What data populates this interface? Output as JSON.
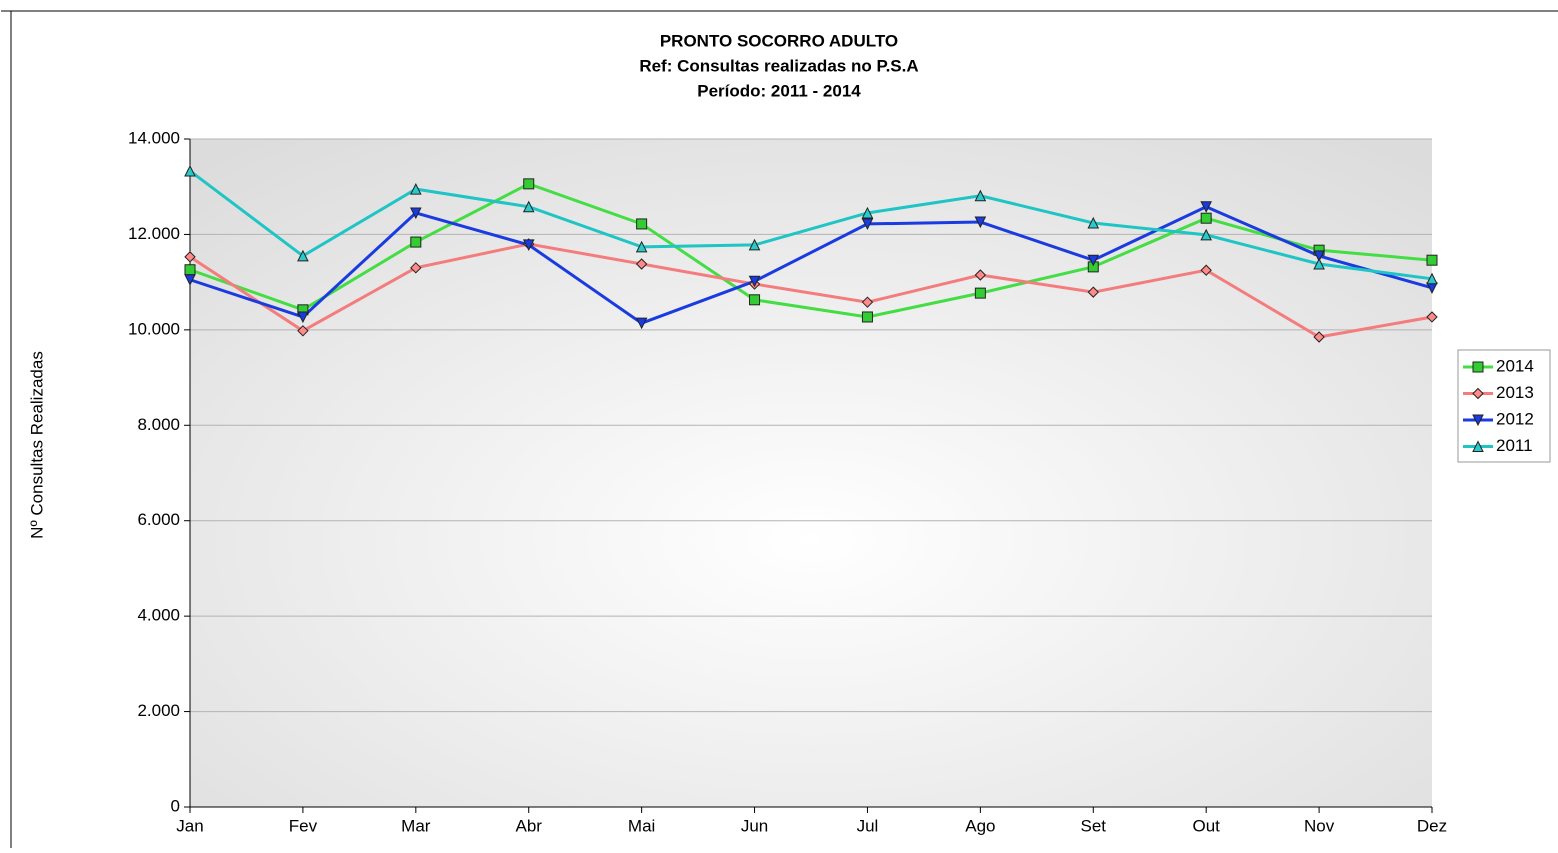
{
  "chart_data": {
    "type": "line",
    "title": "PRONTO SOCORRO ADULTO",
    "subtitle": [
      "Ref: Consultas realizadas no P.S.A",
      "Período: 2011 - 2014"
    ],
    "y_label": "Nº Consultas Realizadas",
    "categories": [
      "Jan",
      "Fev",
      "Mar",
      "Abr",
      "Mai",
      "Jun",
      "Jul",
      "Ago",
      "Set",
      "Out",
      "Nov",
      "Dez"
    ],
    "series": [
      {
        "name": "2014",
        "color": "#44dd44",
        "marker": "square",
        "marker_color": "#33cc33",
        "values": [
          11260,
          10420,
          11840,
          13060,
          12220,
          10630,
          10270,
          10770,
          11320,
          12340,
          11670,
          11460
        ]
      },
      {
        "name": "2013",
        "color": "#f47c7c",
        "marker": "diamond",
        "marker_color": "#ff8a8a",
        "values": [
          11530,
          9980,
          11300,
          11800,
          11380,
          10960,
          10580,
          11150,
          10790,
          11250,
          9850,
          10270
        ]
      },
      {
        "name": "2012",
        "color": "#1a3be0",
        "marker": "triangle-down",
        "marker_color": "#1a3be0",
        "values": [
          11050,
          10270,
          12450,
          11780,
          10140,
          11020,
          12220,
          12260,
          11460,
          12580,
          11550,
          10880
        ]
      },
      {
        "name": "2011",
        "color": "#1fc4c4",
        "marker": "triangle-up",
        "marker_color": "#2acaca",
        "values": [
          13330,
          11550,
          12950,
          12580,
          11740,
          11780,
          12450,
          12810,
          12240,
          11990,
          11380,
          11070
        ]
      }
    ],
    "ylim": [
      0,
      14000
    ],
    "yticks": [
      0,
      {
        "value": 2000,
        "label": "2.000"
      },
      {
        "value": 4000,
        "label": "4.000"
      },
      {
        "value": 6000,
        "label": "6.000"
      },
      {
        "value": 8000,
        "label": "8.000"
      },
      {
        "value": 10000,
        "label": "10.000"
      },
      {
        "value": 12000,
        "label": "12.000"
      },
      {
        "value": 14000,
        "label": "14.000"
      }
    ],
    "grid": true,
    "legend": "right"
  }
}
